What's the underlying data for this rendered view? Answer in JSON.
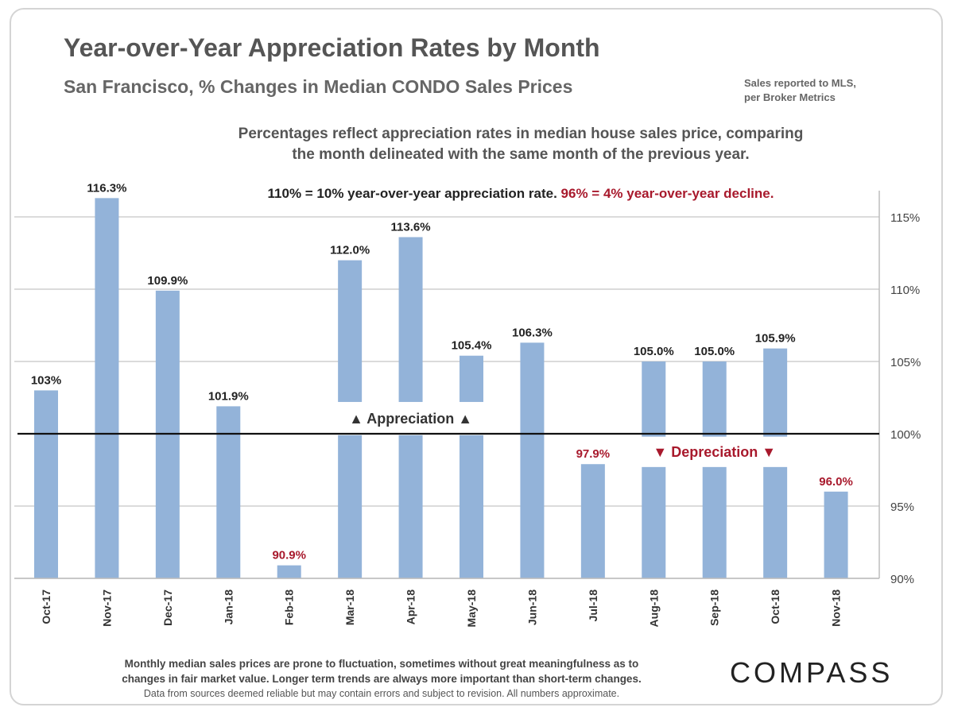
{
  "header": {
    "title": "Year-over-Year Appreciation Rates by Month",
    "subtitle": "San Francisco, % Changes in Median CONDO Sales Prices",
    "source_line1": "Sales reported to MLS,",
    "source_line2": "per Broker Metrics"
  },
  "note": {
    "line1": "Percentages reflect appreciation rates in median house sales price, comparing",
    "line2": "the month delineated with the same month of the previous year."
  },
  "key": {
    "positive": "110% = 10% year-over-year appreciation rate.",
    "negative": "96% = 4% year-over-year decline."
  },
  "chart_data": {
    "type": "bar",
    "categories": [
      "Oct-17",
      "Nov-17",
      "Dec-17",
      "Jan-18",
      "Feb-18",
      "Mar-18",
      "Apr-18",
      "May-18",
      "Jun-18",
      "Jul-18",
      "Aug-18",
      "Sep-18",
      "Oct-18",
      "Nov-18"
    ],
    "values": [
      103,
      116.3,
      109.9,
      101.9,
      90.9,
      112.0,
      113.6,
      105.4,
      106.3,
      97.9,
      105.0,
      105.0,
      105.9,
      96.0
    ],
    "data_labels": [
      "103%",
      "116.3%",
      "109.9%",
      "101.9%",
      "90.9%",
      "112.0%",
      "113.6%",
      "105.4%",
      "106.3%",
      "97.9%",
      "105.0%",
      "105.0%",
      "105.9%",
      "96.0%"
    ],
    "ylim": [
      90,
      117
    ],
    "yticks": [
      90,
      95,
      100,
      105,
      110,
      115
    ],
    "ytick_labels": [
      "90%",
      "95%",
      "100%",
      "105%",
      "110%",
      "115%"
    ],
    "baseline": 100,
    "grid": true,
    "y_axis_side": "right",
    "bar_color": "#93b3d9",
    "label_color_positive": "#222222",
    "label_color_negative": "#a8192c",
    "annotations": {
      "appreciation": "▲ Appreciation ▲",
      "depreciation": "▼ Depreciation ▼"
    }
  },
  "footer": {
    "line1": "Monthly median sales prices are prone to fluctuation, sometimes without great meaningfulness as to",
    "line2": "changes in fair market value. Longer term trends are always more important than short-term changes.",
    "line3": "Data from sources deemed reliable but may contain errors and subject to revision. All numbers approximate."
  },
  "brand": {
    "logo_text": "COMPASS"
  }
}
